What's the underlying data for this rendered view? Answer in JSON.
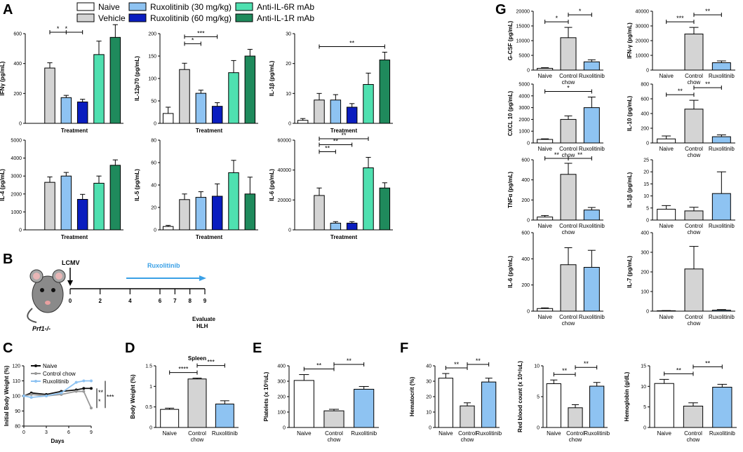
{
  "colors": {
    "Naive": "#ffffff",
    "Vehicle": "#d4d4d4",
    "Control chow": "#d4d4d4",
    "Ruxolitinib (30 mg/kg)": "#8ec3f2",
    "Ruxolitinib": "#8ec3f2",
    "Ruxolitinib (60 mg/kg)": "#0a1dbf",
    "Anti-IL-6R mAb": "#4fe0b0",
    "Anti-IL-1R mAb": "#1f8a5c",
    "line_naive": "#111111",
    "line_control": "#999999",
    "line_rux": "#8ec3f2",
    "timeline_arrow": "#3aa0e6"
  },
  "panels": {
    "A": "A",
    "B": "B",
    "C": "C",
    "D": "D",
    "E": "E",
    "F": "F",
    "G": "G"
  },
  "legend": {
    "items": [
      "Naive",
      "Vehicle",
      "Ruxolitinib (30 mg/kg)",
      "Ruxolitinib (60 mg/kg)",
      "Anti-IL-6R mAb",
      "Anti-IL-1R mAb"
    ]
  },
  "timeline": {
    "infection": "LCMV",
    "treatment": "Ruxolitinib",
    "days": [
      "0",
      "2",
      "4",
      "6",
      "7",
      "8",
      "9"
    ],
    "evaluate": [
      "Evaluate",
      "HLH"
    ],
    "mouse": "Prf1-/-"
  },
  "chart_data": [
    {
      "id": "A1",
      "type": "bar",
      "ylabel": "IFNγ (pg/mL)",
      "xlabel": "Treatment",
      "ylim": [
        0,
        600
      ],
      "ticks": [
        0,
        200,
        400,
        600
      ],
      "categories": [
        "Naive",
        "Vehicle",
        "Ruxolitinib (30 mg/kg)",
        "Ruxolitinib (60 mg/kg)",
        "Anti-IL-6R mAb",
        "Anti-IL-1R mAb"
      ],
      "values": [
        0,
        370,
        172,
        143,
        460,
        575
      ],
      "errors": [
        0,
        35,
        15,
        18,
        90,
        85
      ],
      "sig": [
        {
          "a": 1,
          "b": 2,
          "label": "*"
        },
        {
          "a": 1,
          "b": 3,
          "label": "*"
        }
      ]
    },
    {
      "id": "A2",
      "type": "bar",
      "ylabel": "IL-12p70 (pg/mL)",
      "xlabel": "Treatment",
      "ylim": [
        0,
        200
      ],
      "ticks": [
        0,
        50,
        100,
        150,
        200
      ],
      "categories": [
        "Naive",
        "Vehicle",
        "Ruxolitinib (30 mg/kg)",
        "Ruxolitinib (60 mg/kg)",
        "Anti-IL-6R mAb",
        "Anti-IL-1R mAb"
      ],
      "values": [
        22,
        120,
        67,
        38,
        113,
        150
      ],
      "errors": [
        14,
        14,
        7,
        8,
        27,
        15
      ],
      "sig": [
        {
          "a": 1,
          "b": 2,
          "label": "*"
        },
        {
          "a": 1,
          "b": 3,
          "label": "***"
        }
      ]
    },
    {
      "id": "A3",
      "type": "bar",
      "ylabel": "IL-1β (pg/mL)",
      "xlabel": "Treatment",
      "ylim": [
        0,
        30
      ],
      "ticks": [
        0,
        10,
        20,
        30
      ],
      "categories": [
        "Naive",
        "Vehicle",
        "Ruxolitinib (30 mg/kg)",
        "Ruxolitinib (60 mg/kg)",
        "Anti-IL-6R mAb",
        "Anti-IL-1R mAb"
      ],
      "values": [
        1,
        7.8,
        7.8,
        5.4,
        13,
        21.2
      ],
      "errors": [
        0.6,
        2.2,
        1.8,
        1.2,
        3.8,
        2.6
      ],
      "sig": [
        {
          "a": 1,
          "b": 5,
          "label": "**"
        }
      ]
    },
    {
      "id": "A4",
      "type": "bar",
      "ylabel": "IL-4 (pg/mL)",
      "xlabel": "Treatment",
      "ylim": [
        0,
        5000
      ],
      "ticks": [
        0,
        1000,
        2000,
        3000,
        4000,
        5000
      ],
      "categories": [
        "Naive",
        "Vehicle",
        "Ruxolitinib (30 mg/kg)",
        "Ruxolitinib (60 mg/kg)",
        "Anti-IL-6R mAb",
        "Anti-IL-1R mAb"
      ],
      "values": [
        0,
        2650,
        3000,
        1700,
        2600,
        3600
      ],
      "errors": [
        0,
        300,
        200,
        280,
        400,
        300
      ],
      "sig": []
    },
    {
      "id": "A5",
      "type": "bar",
      "ylabel": "IL-5 (pg/mL)",
      "xlabel": "Treatment",
      "ylim": [
        0,
        80
      ],
      "ticks": [
        0,
        20,
        40,
        60,
        80
      ],
      "categories": [
        "Naive",
        "Vehicle",
        "Ruxolitinib (30 mg/kg)",
        "Ruxolitinib (60 mg/kg)",
        "Anti-IL-6R mAb",
        "Anti-IL-1R mAb"
      ],
      "values": [
        3,
        27,
        29,
        30,
        51,
        32
      ],
      "errors": [
        1,
        5,
        5,
        11,
        11,
        15
      ],
      "sig": []
    },
    {
      "id": "A6",
      "type": "bar",
      "ylabel": "IL-6 (pg/mL)",
      "xlabel": "Treatment",
      "ylim": [
        0,
        60000
      ],
      "ticks": [
        0,
        20000,
        40000,
        60000
      ],
      "categories": [
        "Naive",
        "Vehicle",
        "Ruxolitinib (30 mg/kg)",
        "Ruxolitinib (60 mg/kg)",
        "Anti-IL-6R mAb",
        "Anti-IL-1R mAb"
      ],
      "values": [
        0,
        23000,
        4500,
        4500,
        41500,
        28000
      ],
      "errors": [
        0,
        5000,
        1000,
        1000,
        7000,
        3500
      ],
      "sig": [
        {
          "a": 1,
          "b": 2,
          "label": "**"
        },
        {
          "a": 1,
          "b": 3,
          "label": "**"
        },
        {
          "a": 1,
          "b": 4,
          "label": "**"
        }
      ]
    },
    {
      "id": "C",
      "type": "line",
      "xlabel": "Days",
      "ylabel": "Initial Body Weight (%)",
      "ylim": [
        80,
        120
      ],
      "ticks": [
        80,
        90,
        100,
        110,
        120
      ],
      "xticks": [
        0,
        3,
        6,
        9
      ],
      "series": [
        {
          "name": "Naive",
          "x": [
            0,
            1,
            3,
            5,
            7,
            8,
            9
          ],
          "y": [
            100,
            102,
            101,
            103,
            104,
            105,
            105
          ]
        },
        {
          "name": "Control chow",
          "x": [
            0,
            1,
            3,
            5,
            7,
            8,
            9
          ],
          "y": [
            100,
            101,
            100,
            101,
            103,
            103,
            92
          ]
        },
        {
          "name": "Ruxolitinib",
          "x": [
            0,
            1,
            3,
            5,
            7,
            8,
            9
          ],
          "y": [
            100,
            99,
            100,
            102,
            109,
            110,
            110
          ]
        }
      ],
      "sig": [
        "**",
        "*",
        "***"
      ]
    },
    {
      "id": "D",
      "type": "bar",
      "title": "Spleen",
      "ylabel": "Body Weight (%)",
      "ylim": [
        0,
        1.5
      ],
      "ticks": [
        0.0,
        0.5,
        1.0,
        1.5
      ],
      "categories": [
        "Naive",
        "Control chow",
        "Ruxolitinib"
      ],
      "values": [
        0.44,
        1.18,
        0.57
      ],
      "errors": [
        0.03,
        0.02,
        0.08
      ],
      "sig": [
        {
          "a": 0,
          "b": 1,
          "label": "****"
        },
        {
          "a": 1,
          "b": 2,
          "label": "***"
        }
      ]
    },
    {
      "id": "E",
      "type": "bar",
      "ylabel": "Platelets (x 10³/uL)",
      "ylim": [
        0,
        400
      ],
      "ticks": [
        0,
        100,
        200,
        300,
        400
      ],
      "categories": [
        "Naive",
        "Control chow",
        "Ruxolitinib"
      ],
      "values": [
        305,
        108,
        248
      ],
      "errors": [
        38,
        10,
        18
      ],
      "sig": [
        {
          "a": 0,
          "b": 1,
          "label": "**"
        },
        {
          "a": 1,
          "b": 2,
          "label": "**"
        }
      ]
    },
    {
      "id": "F1",
      "type": "bar",
      "ylabel": "Hematocrit (%)",
      "ylim": [
        0,
        40
      ],
      "ticks": [
        0,
        10,
        20,
        30,
        40
      ],
      "categories": [
        "Naive",
        "Control chow",
        "Ruxolitinib"
      ],
      "values": [
        32,
        14,
        29.5
      ],
      "errors": [
        3,
        2,
        2.5
      ],
      "sig": [
        {
          "a": 0,
          "b": 1,
          "label": "**"
        },
        {
          "a": 1,
          "b": 2,
          "label": "**"
        }
      ]
    },
    {
      "id": "F2",
      "type": "bar",
      "ylabel": "Red blood count (x 10⁶/uL)",
      "ylim": [
        0,
        10
      ],
      "ticks": [
        0,
        5,
        10
      ],
      "categories": [
        "Naive",
        "Control chow",
        "Ruxolitinib"
      ],
      "values": [
        7.1,
        3.2,
        6.7
      ],
      "errors": [
        0.6,
        0.5,
        0.6
      ],
      "sig": [
        {
          "a": 0,
          "b": 1,
          "label": "**"
        },
        {
          "a": 1,
          "b": 2,
          "label": "**"
        }
      ]
    },
    {
      "id": "F3",
      "type": "bar",
      "ylabel": "Hemoglobin (g/dL)",
      "ylim": [
        0,
        15
      ],
      "ticks": [
        0,
        5,
        10,
        15
      ],
      "categories": [
        "Naive",
        "Control chow",
        "Ruxolitinib"
      ],
      "values": [
        10.7,
        5.2,
        9.8
      ],
      "errors": [
        1.0,
        0.8,
        0.7
      ],
      "sig": [
        {
          "a": 0,
          "b": 1,
          "label": "**"
        },
        {
          "a": 1,
          "b": 2,
          "label": "**"
        }
      ]
    },
    {
      "id": "G1",
      "type": "bar",
      "ylabel": "G-CSF (pg/mL)",
      "ylim": [
        0,
        20000
      ],
      "ticks": [
        0,
        5000,
        10000,
        15000,
        20000
      ],
      "categories": [
        "Naive",
        "Control chow",
        "Ruxolitinib"
      ],
      "values": [
        600,
        11000,
        2800
      ],
      "errors": [
        200,
        3500,
        700
      ],
      "sig": [
        {
          "a": 0,
          "b": 1,
          "label": "*"
        },
        {
          "a": 1,
          "b": 2,
          "label": "*"
        }
      ]
    },
    {
      "id": "G2",
      "type": "bar",
      "ylabel": "IFN-γ (pg/mL)",
      "ylim": [
        0,
        40000
      ],
      "ticks": [
        0,
        10000,
        20000,
        30000,
        40000
      ],
      "categories": [
        "Naive",
        "Control chow",
        "Ruxolitinib"
      ],
      "values": [
        0,
        24500,
        5000
      ],
      "errors": [
        0,
        4500,
        1200
      ],
      "sig": [
        {
          "a": 0,
          "b": 1,
          "label": "***"
        },
        {
          "a": 1,
          "b": 2,
          "label": "**"
        }
      ]
    },
    {
      "id": "G3",
      "type": "bar",
      "ylabel": "CXCL 10 (pg/mL)",
      "ylim": [
        0,
        5000
      ],
      "ticks": [
        0,
        1000,
        2000,
        3000,
        4000,
        5000
      ],
      "categories": [
        "Naive",
        "Control chow",
        "Ruxolitinib"
      ],
      "values": [
        300,
        2000,
        3000
      ],
      "errors": [
        50,
        300,
        900
      ],
      "sig": [
        {
          "a": 0,
          "b": 2,
          "label": "*"
        }
      ]
    },
    {
      "id": "G4",
      "type": "bar",
      "ylabel": "IL-10 (pg/mL)",
      "ylim": [
        0,
        800
      ],
      "ticks": [
        0,
        200,
        400,
        600,
        800
      ],
      "categories": [
        "Naive",
        "Control chow",
        "Ruxolitinib"
      ],
      "values": [
        55,
        460,
        85
      ],
      "errors": [
        40,
        120,
        25
      ],
      "sig": [
        {
          "a": 0,
          "b": 1,
          "label": "**"
        },
        {
          "a": 1,
          "b": 2,
          "label": "**"
        }
      ]
    },
    {
      "id": "G5",
      "type": "bar",
      "ylabel": "TNFα (pg/mL)",
      "ylim": [
        0,
        600
      ],
      "ticks": [
        0,
        200,
        400,
        600
      ],
      "categories": [
        "Naive",
        "Control chow",
        "Ruxolitinib"
      ],
      "values": [
        30,
        455,
        100
      ],
      "errors": [
        15,
        110,
        25
      ],
      "sig": [
        {
          "a": 0,
          "b": 1,
          "label": "**"
        },
        {
          "a": 1,
          "b": 2,
          "label": "**"
        }
      ]
    },
    {
      "id": "G6",
      "type": "bar",
      "ylabel": "IL-1β (pg/mL)",
      "ylim": [
        0,
        25
      ],
      "ticks": [
        0,
        5,
        10,
        15,
        20,
        25
      ],
      "categories": [
        "Naive",
        "Control chow",
        "Ruxolitinib"
      ],
      "values": [
        4.5,
        3.8,
        11
      ],
      "errors": [
        1.5,
        1.5,
        9
      ],
      "sig": []
    },
    {
      "id": "G7",
      "type": "bar",
      "ylabel": "IL-6 (pg/mL)",
      "ylim": [
        0,
        600
      ],
      "ticks": [
        0,
        200,
        400,
        600
      ],
      "categories": [
        "Naive",
        "Control chow",
        "Ruxolitinib"
      ],
      "values": [
        20,
        355,
        335
      ],
      "errors": [
        5,
        130,
        130
      ],
      "sig": []
    },
    {
      "id": "G8",
      "type": "bar",
      "ylabel": "IL-7 (pg/mL)",
      "ylim": [
        0,
        400
      ],
      "ticks": [
        0,
        100,
        200,
        300,
        400
      ],
      "categories": [
        "Naive",
        "Control chow",
        "Ruxolitinib"
      ],
      "values": [
        2,
        215,
        5
      ],
      "errors": [
        1,
        115,
        3
      ],
      "sig": []
    }
  ]
}
